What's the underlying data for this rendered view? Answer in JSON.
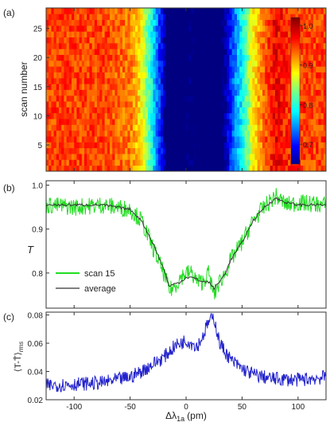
{
  "chart_data": [
    {
      "panel_label": "(a)",
      "type": "heatmap",
      "ylabel": "scan number",
      "x_range": [
        -125,
        125
      ],
      "y_range": [
        1,
        28
      ],
      "y_ticks": [
        "5",
        "10",
        "15",
        "20",
        "25"
      ],
      "colorbar": {
        "range": [
          0.65,
          1.02
        ],
        "tick_labels": [
          "0.7",
          "0.8",
          "0.9",
          "1.0"
        ],
        "colormap": "jet"
      },
      "description_values": {
        "baseline": 0.96,
        "dip_center": 0,
        "dip_value": 0.72
      }
    },
    {
      "panel_label": "(b)",
      "type": "line",
      "ylabel": "T",
      "x_range": [
        -125,
        125
      ],
      "ylim": [
        0.72,
        1.01
      ],
      "y_ticks": [
        "0.8",
        "0.9",
        "1.0"
      ],
      "legend": {
        "placement": "bottom-left"
      },
      "series": [
        {
          "name": "scan 15",
          "color": "#22dd22",
          "x": [
            -125,
            -100,
            -75,
            -50,
            -40,
            -30,
            -20,
            -15,
            -10,
            -5,
            0,
            5,
            10,
            15,
            20,
            25,
            30,
            35,
            40,
            50,
            60,
            70,
            80,
            90,
            100,
            125
          ],
          "values": [
            0.955,
            0.95,
            0.955,
            0.945,
            0.92,
            0.86,
            0.8,
            0.76,
            0.77,
            0.79,
            0.8,
            0.8,
            0.78,
            0.78,
            0.8,
            0.75,
            0.78,
            0.8,
            0.83,
            0.87,
            0.92,
            0.95,
            0.975,
            0.955,
            0.96,
            0.955
          ]
        },
        {
          "name": "average",
          "color": "#333333",
          "x": [
            -125,
            -100,
            -75,
            -50,
            -40,
            -30,
            -20,
            -15,
            -10,
            -5,
            0,
            5,
            10,
            15,
            20,
            25,
            30,
            35,
            40,
            50,
            60,
            70,
            80,
            90,
            100,
            125
          ],
          "values": [
            0.955,
            0.955,
            0.955,
            0.945,
            0.92,
            0.87,
            0.81,
            0.77,
            0.775,
            0.78,
            0.79,
            0.79,
            0.785,
            0.78,
            0.78,
            0.765,
            0.78,
            0.8,
            0.83,
            0.87,
            0.92,
            0.95,
            0.97,
            0.96,
            0.955,
            0.955
          ]
        }
      ]
    },
    {
      "panel_label": "(c)",
      "type": "line",
      "ylabel": "⟨T-T̄⟩",
      "ylabel_sub": "rms",
      "xlabel": "Δλ",
      "xlabel_sub": "1a",
      "xlabel_unit": "(pm)",
      "x_range": [
        -125,
        125
      ],
      "x_ticks": [
        "-100",
        "-50",
        "0",
        "50",
        "100"
      ],
      "ylim": [
        0.02,
        0.082
      ],
      "y_ticks": [
        "0.02",
        "0.04",
        "0.06",
        "0.08"
      ],
      "series": [
        {
          "color": "#2222cc",
          "x": [
            -125,
            -100,
            -75,
            -50,
            -40,
            -30,
            -20,
            -10,
            0,
            10,
            15,
            20,
            25,
            30,
            40,
            50,
            60,
            75,
            100,
            125
          ],
          "values": [
            0.03,
            0.031,
            0.032,
            0.036,
            0.04,
            0.045,
            0.05,
            0.058,
            0.062,
            0.058,
            0.065,
            0.075,
            0.078,
            0.06,
            0.048,
            0.042,
            0.038,
            0.035,
            0.034,
            0.036
          ]
        }
      ]
    }
  ],
  "legend_labels": {
    "scan": "scan 15",
    "avg": "average"
  }
}
